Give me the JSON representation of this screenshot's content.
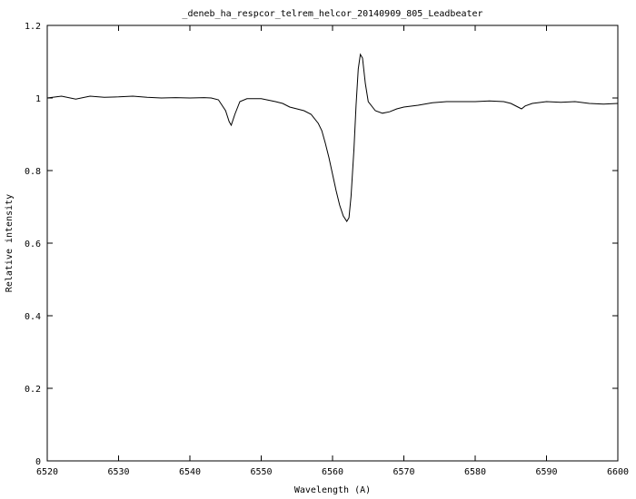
{
  "chart_data": {
    "type": "line",
    "title": "_deneb_ha_respcor_telrem_helcor_20140909_805_Leadbeater",
    "xlabel": "Wavelength (A)",
    "ylabel": "Relative intensity",
    "xlim": [
      6520,
      6600
    ],
    "ylim": [
      0,
      1.2
    ],
    "x_ticks": [
      "6520",
      "6530",
      "6540",
      "6550",
      "6560",
      "6570",
      "6580",
      "6590",
      "6600"
    ],
    "y_ticks": [
      "0",
      "0.2",
      "0.4",
      "0.6",
      "0.8",
      "1",
      "1.2"
    ],
    "grid": false,
    "legend": "none",
    "line_color": "#000000",
    "series": [
      {
        "x": [
          6520,
          6522,
          6524,
          6526,
          6528,
          6530,
          6532,
          6534,
          6536,
          6538,
          6540,
          6542,
          6543,
          6544,
          6545,
          6545.5,
          6545.8,
          6546.3,
          6547,
          6548,
          6550,
          6552,
          6553,
          6554,
          6555,
          6556,
          6557,
          6558,
          6558.5,
          6559,
          6559.5,
          6560,
          6560.5,
          6561,
          6561.5,
          6562,
          6562.3,
          6562.6,
          6563,
          6563.3,
          6563.6,
          6563.9,
          6564.2,
          6564.6,
          6565,
          6566,
          6567,
          6568,
          6569,
          6570,
          6572,
          6574,
          6576,
          6578,
          6580,
          6582,
          6584,
          6585,
          6586,
          6586.5,
          6587,
          6588,
          6590,
          6592,
          6594,
          6596,
          6598,
          6600
        ],
        "y": [
          1.0,
          1.005,
          0.997,
          1.005,
          1.002,
          1.003,
          1.005,
          1.002,
          1.0,
          1.001,
          1.0,
          1.001,
          1.0,
          0.995,
          0.965,
          0.935,
          0.925,
          0.955,
          0.99,
          0.998,
          0.998,
          0.99,
          0.985,
          0.975,
          0.97,
          0.965,
          0.955,
          0.93,
          0.91,
          0.875,
          0.835,
          0.79,
          0.745,
          0.705,
          0.675,
          0.66,
          0.67,
          0.73,
          0.86,
          0.98,
          1.08,
          1.12,
          1.11,
          1.04,
          0.99,
          0.965,
          0.958,
          0.962,
          0.97,
          0.975,
          0.98,
          0.987,
          0.99,
          0.99,
          0.99,
          0.992,
          0.99,
          0.985,
          0.975,
          0.97,
          0.978,
          0.985,
          0.99,
          0.988,
          0.99,
          0.985,
          0.983,
          0.985
        ]
      }
    ]
  }
}
